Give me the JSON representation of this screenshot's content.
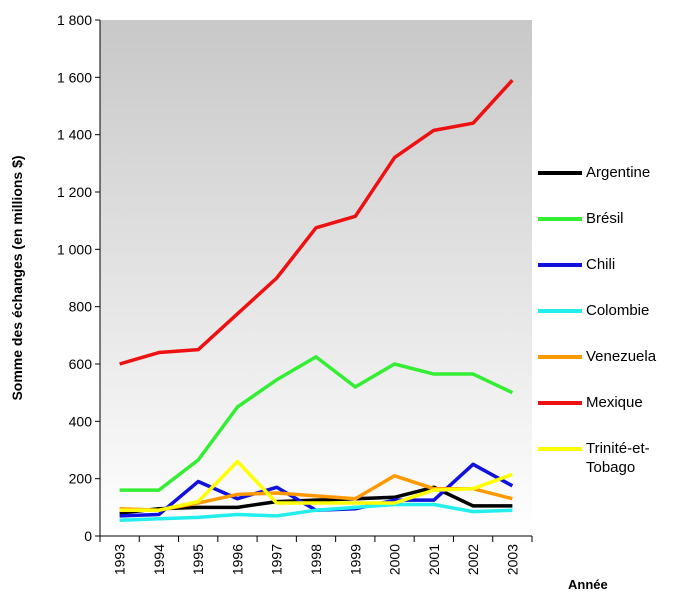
{
  "chart_data": {
    "type": "line",
    "x_label": "Année",
    "y_label": "Somme des échanges (en millions $)",
    "categories": [
      "1993",
      "1994",
      "1995",
      "1996",
      "1997",
      "1998",
      "1999",
      "2000",
      "2001",
      "2002",
      "2003"
    ],
    "series": [
      {
        "name": "Argentine",
        "color": "#000000",
        "values": [
          80,
          95,
          100,
          100,
          120,
          125,
          130,
          135,
          170,
          105,
          105
        ]
      },
      {
        "name": "Brésil",
        "color": "#33ee33",
        "values": [
          160,
          160,
          265,
          450,
          545,
          625,
          520,
          600,
          565,
          565,
          500
        ]
      },
      {
        "name": "Chili",
        "color": "#1111dd",
        "values": [
          70,
          75,
          190,
          130,
          170,
          90,
          95,
          125,
          125,
          250,
          175
        ]
      },
      {
        "name": "Colombie",
        "color": "#22eeee",
        "values": [
          55,
          60,
          65,
          75,
          70,
          90,
          100,
          110,
          110,
          85,
          90
        ]
      },
      {
        "name": "Venezuela",
        "color": "#ff9900",
        "values": [
          95,
          90,
          115,
          145,
          150,
          140,
          130,
          210,
          165,
          165,
          130
        ]
      },
      {
        "name": "Mexique",
        "color": "#ee1111",
        "values": [
          600,
          640,
          650,
          775,
          900,
          1075,
          1115,
          1320,
          1415,
          1440,
          1590
        ]
      },
      {
        "name": "Trinité-et-Tobago",
        "color": "#ffff00",
        "values": [
          90,
          90,
          120,
          260,
          115,
          115,
          115,
          115,
          160,
          165,
          215
        ]
      }
    ],
    "ylim": [
      0,
      1800
    ],
    "yticks": [
      0,
      200,
      400,
      600,
      800,
      {
        "value": 1000,
        "label": "1 000"
      },
      {
        "value": 1200,
        "label": "1 200"
      },
      {
        "value": 1400,
        "label": "1 400"
      },
      {
        "value": 1600,
        "label": "1 600"
      },
      {
        "value": 1800,
        "label": "1 800"
      }
    ]
  }
}
